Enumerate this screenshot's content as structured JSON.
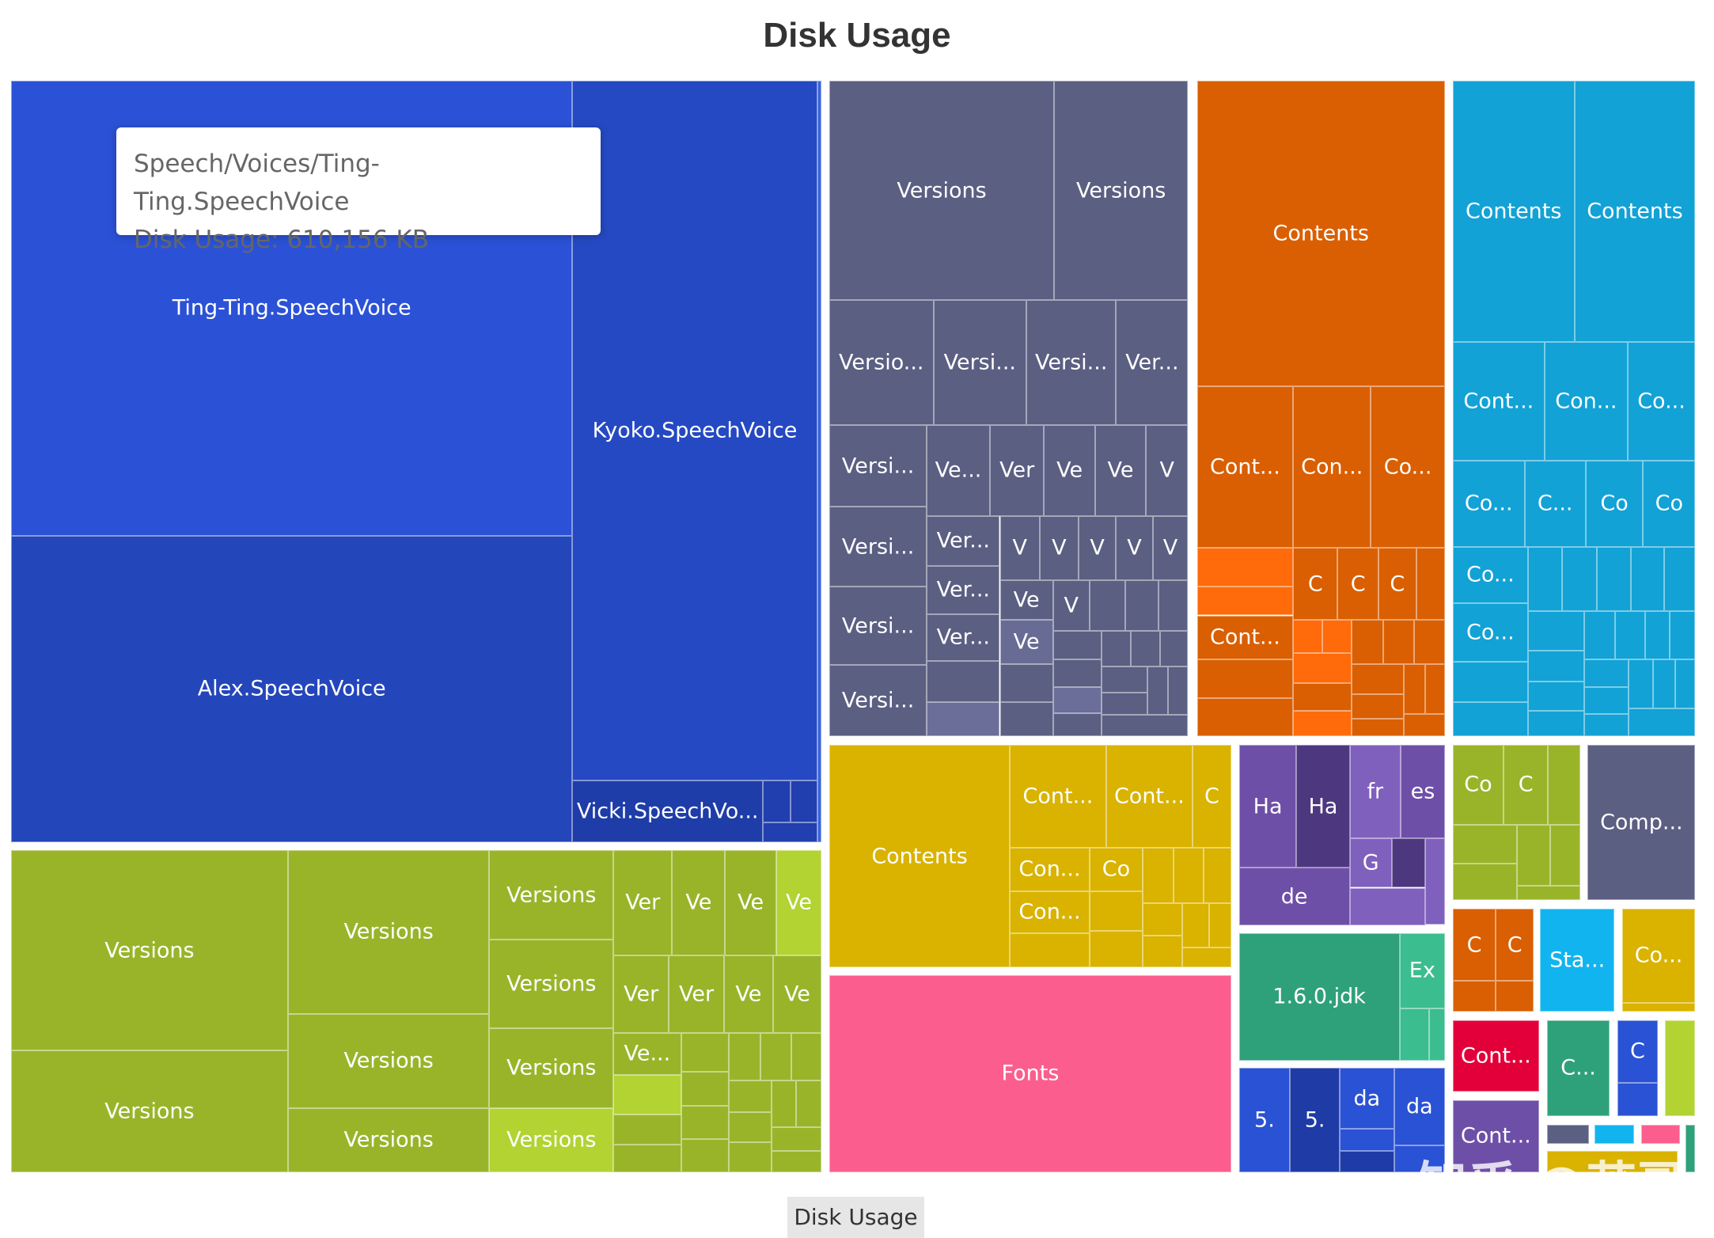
{
  "title": "Disk Usage",
  "breadcrumb": "Disk Usage",
  "watermark": "知乎 @茂哥",
  "tooltip": {
    "path": "Speech/Voices/Ting-Ting.SpeechVoice",
    "value": "Disk Usage: 610,156 KB"
  },
  "colors": {
    "blue": "#2a52d4",
    "slate": "#5b5f82",
    "orange": "#d95f02",
    "cyan": "#12a2d6",
    "olive": "#9ab42a",
    "gold": "#d9b300",
    "pink": "#fb5e8e",
    "purple": "#6e4fa8",
    "teal": "#2fa17a"
  },
  "chart_data": {
    "type": "treemap",
    "title": "Disk Usage",
    "metric": "Disk Usage",
    "unit": "KB",
    "leaves": [
      {
        "name": "Ting-Ting.SpeechVoice",
        "label": "Ting-Ting.SpeechVoice",
        "group": "Speech",
        "value": 610156
      },
      {
        "name": "Kyoko.SpeechVoice",
        "label": "Kyoko.SpeechVoice",
        "group": "Speech"
      },
      {
        "name": "Alex.SpeechVoice",
        "label": "Alex.SpeechVoice",
        "group": "Speech"
      },
      {
        "name": "Vicki.SpeechVoice",
        "label": "Vicki.SpeechVo...",
        "group": "Speech"
      },
      {
        "name": "Versions",
        "label": "Versions",
        "group": "slate"
      },
      {
        "name": "Versions",
        "label": "Versions",
        "group": "slate"
      },
      {
        "name": "Versions",
        "label": "Versio...",
        "group": "slate"
      },
      {
        "name": "Versions",
        "label": "Versi...",
        "group": "slate"
      },
      {
        "name": "Versions",
        "label": "Versi...",
        "group": "slate"
      },
      {
        "name": "Versions",
        "label": "Ver...",
        "group": "slate"
      },
      {
        "name": "Versions",
        "label": "Versi...",
        "group": "slate"
      },
      {
        "name": "Versions",
        "label": "Ve...",
        "group": "slate"
      },
      {
        "name": "Versions",
        "label": "Ver",
        "group": "slate"
      },
      {
        "name": "Versions",
        "label": "Ve",
        "group": "slate"
      },
      {
        "name": "Versions",
        "label": "Ve",
        "group": "slate"
      },
      {
        "name": "Versions",
        "label": "V",
        "group": "slate"
      },
      {
        "name": "Versions",
        "label": "Versi...",
        "group": "slate"
      },
      {
        "name": "Versions",
        "label": "Ver...",
        "group": "slate"
      },
      {
        "name": "Versions",
        "label": "V",
        "group": "slate"
      },
      {
        "name": "Versions",
        "label": "V",
        "group": "slate"
      },
      {
        "name": "Versions",
        "label": "V",
        "group": "slate"
      },
      {
        "name": "Versions",
        "label": "V",
        "group": "slate"
      },
      {
        "name": "Versions",
        "label": "V",
        "group": "slate"
      },
      {
        "name": "Versions",
        "label": "Versi...",
        "group": "slate"
      },
      {
        "name": "Versions",
        "label": "Ver...",
        "group": "slate"
      },
      {
        "name": "Versions",
        "label": "Ve",
        "group": "slate"
      },
      {
        "name": "Versions",
        "label": "V",
        "group": "slate"
      },
      {
        "name": "Versions",
        "label": "Ver...",
        "group": "slate"
      },
      {
        "name": "Versions",
        "label": "Ve",
        "group": "slate"
      },
      {
        "name": "Versions",
        "label": "Versi...",
        "group": "slate"
      },
      {
        "name": "Contents",
        "label": "Contents",
        "group": "orange"
      },
      {
        "name": "Contents",
        "label": "Cont...",
        "group": "orange"
      },
      {
        "name": "Contents",
        "label": "Con...",
        "group": "orange"
      },
      {
        "name": "Contents",
        "label": "Co...",
        "group": "orange"
      },
      {
        "name": "Contents",
        "label": "C",
        "group": "orange"
      },
      {
        "name": "Contents",
        "label": "C",
        "group": "orange"
      },
      {
        "name": "Contents",
        "label": "C",
        "group": "orange"
      },
      {
        "name": "Contents",
        "label": "Cont...",
        "group": "orange"
      },
      {
        "name": "Contents",
        "label": "Contents",
        "group": "cyan"
      },
      {
        "name": "Contents",
        "label": "Contents",
        "group": "cyan"
      },
      {
        "name": "Contents",
        "label": "Cont...",
        "group": "cyan"
      },
      {
        "name": "Contents",
        "label": "Con...",
        "group": "cyan"
      },
      {
        "name": "Contents",
        "label": "Co...",
        "group": "cyan"
      },
      {
        "name": "Contents",
        "label": "Co...",
        "group": "cyan"
      },
      {
        "name": "Contents",
        "label": "C...",
        "group": "cyan"
      },
      {
        "name": "Contents",
        "label": "Co",
        "group": "cyan"
      },
      {
        "name": "Contents",
        "label": "Co",
        "group": "cyan"
      },
      {
        "name": "Contents",
        "label": "Co...",
        "group": "cyan"
      },
      {
        "name": "Contents",
        "label": "Co...",
        "group": "cyan"
      },
      {
        "name": "Versions",
        "label": "Versions",
        "group": "olive"
      },
      {
        "name": "Versions",
        "label": "Versions",
        "group": "olive"
      },
      {
        "name": "Versions",
        "label": "Versions",
        "group": "olive"
      },
      {
        "name": "Versions",
        "label": "Versions",
        "group": "olive"
      },
      {
        "name": "Versions",
        "label": "Versions",
        "group": "olive"
      },
      {
        "name": "Versions",
        "label": "Versions",
        "group": "olive"
      },
      {
        "name": "Versions",
        "label": "Versions",
        "group": "olive"
      },
      {
        "name": "Versions",
        "label": "Versions",
        "group": "olive"
      },
      {
        "name": "Versions",
        "label": "Versions",
        "group": "olive"
      },
      {
        "name": "Versions",
        "label": "Ver",
        "group": "olive"
      },
      {
        "name": "Versions",
        "label": "Ve",
        "group": "olive"
      },
      {
        "name": "Versions",
        "label": "Ve",
        "group": "olive"
      },
      {
        "name": "Versions",
        "label": "Ve",
        "group": "olive"
      },
      {
        "name": "Versions",
        "label": "Ver",
        "group": "olive"
      },
      {
        "name": "Versions",
        "label": "Ver",
        "group": "olive"
      },
      {
        "name": "Versions",
        "label": "Ve",
        "group": "olive"
      },
      {
        "name": "Versions",
        "label": "Ve",
        "group": "olive"
      },
      {
        "name": "Versions",
        "label": "Ve...",
        "group": "olive"
      },
      {
        "name": "Contents",
        "label": "Contents",
        "group": "gold"
      },
      {
        "name": "Contents",
        "label": "Cont...",
        "group": "gold"
      },
      {
        "name": "Contents",
        "label": "Cont...",
        "group": "gold"
      },
      {
        "name": "Contents",
        "label": "C",
        "group": "gold"
      },
      {
        "name": "Contents",
        "label": "Con...",
        "group": "gold"
      },
      {
        "name": "Contents",
        "label": "Co",
        "group": "gold"
      },
      {
        "name": "Contents",
        "label": "Con...",
        "group": "gold"
      },
      {
        "name": "Fonts",
        "label": "Fonts",
        "group": "pink"
      },
      {
        "name": "Ha",
        "label": "Ha",
        "group": "purple"
      },
      {
        "name": "Ha",
        "label": "Ha",
        "group": "purple"
      },
      {
        "name": "fr",
        "label": "fr",
        "group": "purple"
      },
      {
        "name": "es",
        "label": "es",
        "group": "purple"
      },
      {
        "name": "G",
        "label": "G",
        "group": "purple"
      },
      {
        "name": "de",
        "label": "de",
        "group": "purple"
      },
      {
        "name": "1.6.0.jdk",
        "label": "1.6.0.jdk",
        "group": "teal"
      },
      {
        "name": "Ex",
        "label": "Ex",
        "group": "teal"
      },
      {
        "name": "5.",
        "label": "5.",
        "group": "blue2"
      },
      {
        "name": "5.",
        "label": "5.",
        "group": "blue2"
      },
      {
        "name": "da",
        "label": "da",
        "group": "blue2"
      },
      {
        "name": "da",
        "label": "da",
        "group": "blue2"
      },
      {
        "name": "Co",
        "label": "Co",
        "group": "misc"
      },
      {
        "name": "C",
        "label": "C",
        "group": "misc"
      },
      {
        "name": "Comp...",
        "label": "Comp...",
        "group": "misc"
      },
      {
        "name": "C",
        "label": "C",
        "group": "misc"
      },
      {
        "name": "C",
        "label": "C",
        "group": "misc"
      },
      {
        "name": "Sta...",
        "label": "Sta...",
        "group": "misc"
      },
      {
        "name": "Co...",
        "label": "Co...",
        "group": "misc"
      },
      {
        "name": "Cont...",
        "label": "Cont...",
        "group": "misc"
      },
      {
        "name": "C...",
        "label": "C...",
        "group": "misc"
      },
      {
        "name": "C",
        "label": "C",
        "group": "misc"
      },
      {
        "name": "Cont...",
        "label": "Cont...",
        "group": "misc"
      }
    ]
  }
}
